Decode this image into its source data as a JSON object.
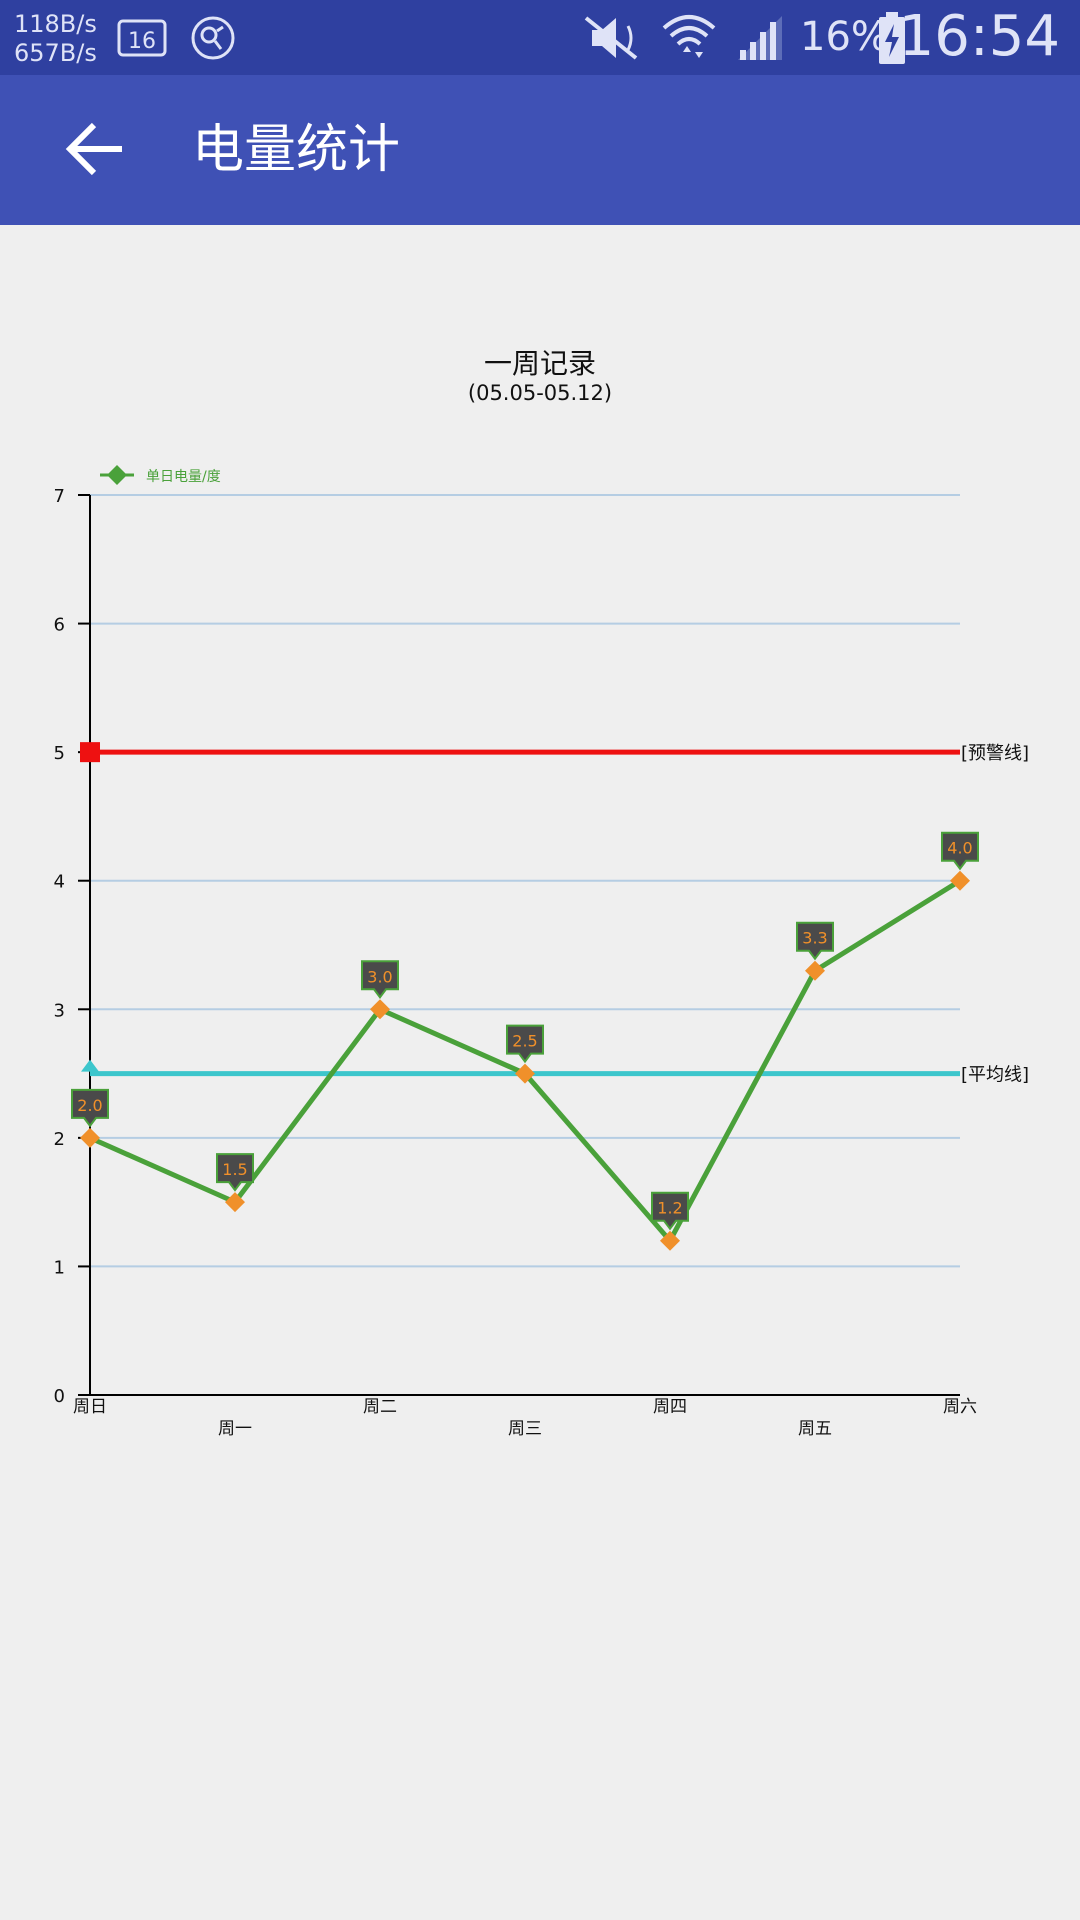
{
  "status_bar": {
    "net_up": "118B/s",
    "net_down": "657B/s",
    "badge": "16",
    "battery_percent": "16%",
    "time": "16:54",
    "icons": [
      "network-speed",
      "sim-badge-icon",
      "app-icon",
      "mute-icon",
      "wifi-icon",
      "signal-icon",
      "battery-charging-icon"
    ]
  },
  "app_bar": {
    "title": "电量统计",
    "back_icon": "arrow-left-icon"
  },
  "chart_data": {
    "type": "line",
    "title": "一周记录",
    "subtitle": "(05.05-05.12)",
    "categories": [
      "周日",
      "周一",
      "周二",
      "周三",
      "周四",
      "周五",
      "周六"
    ],
    "series": [
      {
        "name": "单日电量/度",
        "values": [
          2.0,
          1.5,
          3.0,
          2.5,
          1.2,
          3.3,
          4.0
        ],
        "labels": [
          "2.0",
          "1.5",
          "3.0",
          "2.5",
          "1.2",
          "3.3",
          "4.0"
        ],
        "color": "#4aa13a",
        "marker_color": "#f0902a"
      }
    ],
    "reference_lines": [
      {
        "label": "[预警线]",
        "value": 5,
        "color": "#ee1111"
      },
      {
        "label": "[平均线]",
        "value": 2.5,
        "color": "#3cc6cc"
      }
    ],
    "ylim": [
      0,
      7
    ],
    "yticks": [
      "0",
      "1",
      "2",
      "3",
      "4",
      "5",
      "6",
      "7"
    ],
    "grid": true,
    "grid_color": "#b5cde3",
    "legend_position": "top-left",
    "label_box_color": "#4a4a4a"
  }
}
